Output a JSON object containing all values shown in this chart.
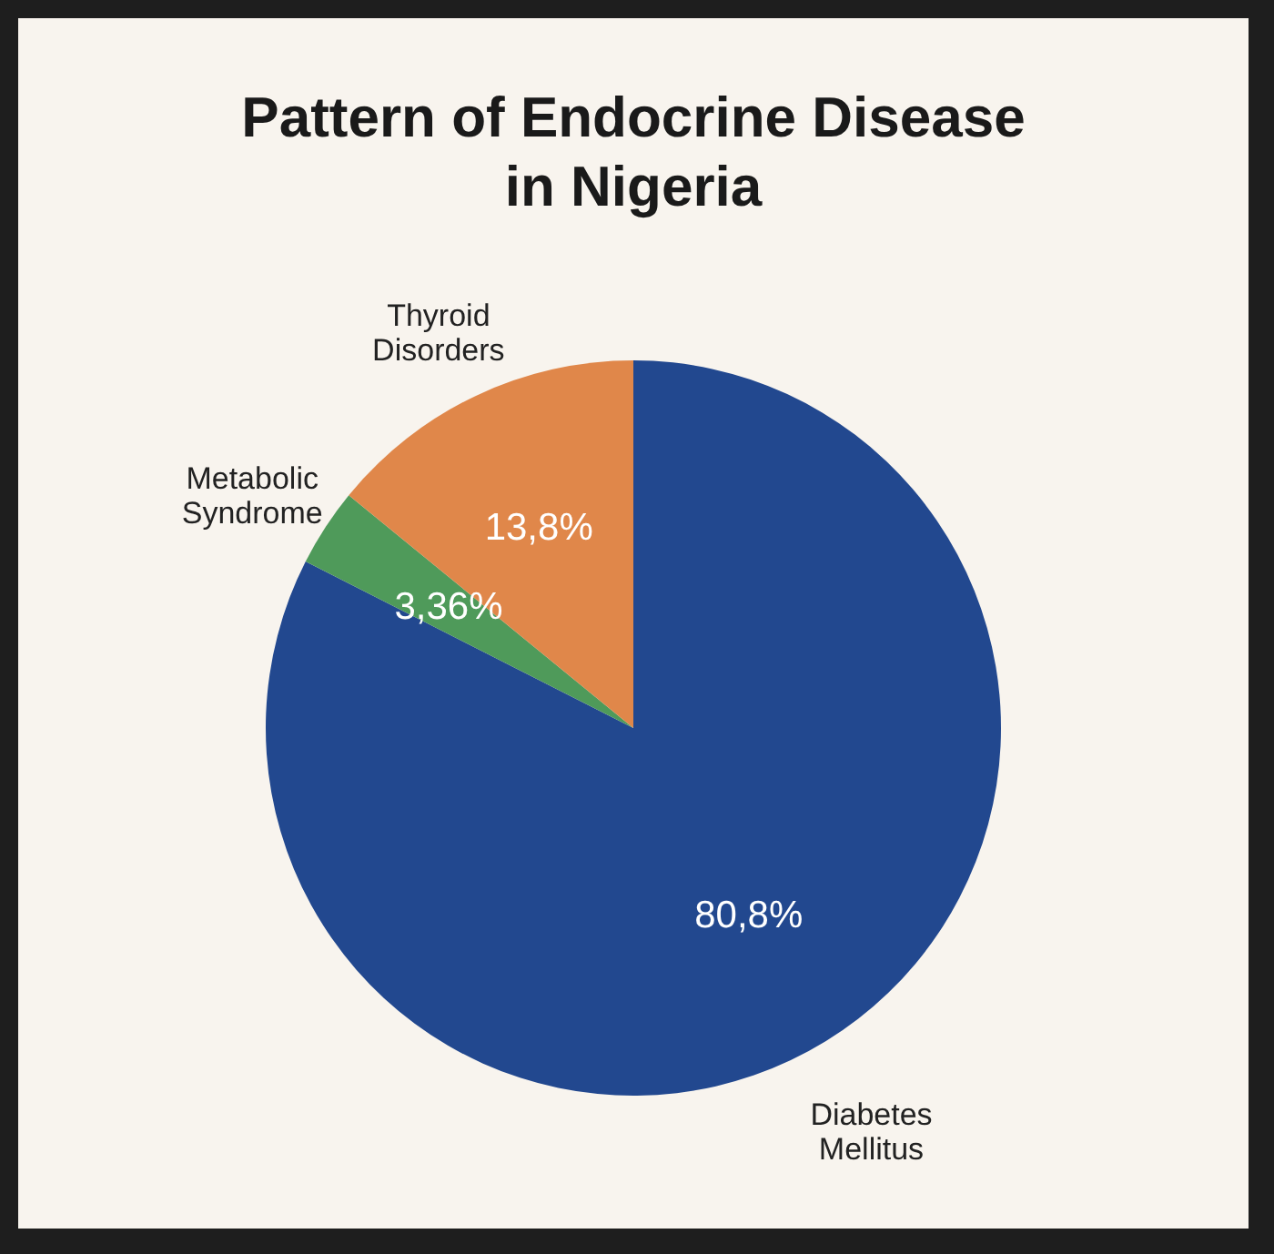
{
  "chart_data": {
    "type": "pie",
    "title": "Pattern of Endocrine Disease in Nigeria",
    "categories": [
      "Diabetes Mellitus",
      "Metabolic Syndrome",
      "Thyroid Disorders"
    ],
    "values": [
      80.8,
      3.36,
      13.8
    ],
    "colors": [
      "#22488f",
      "#4f9a5a",
      "#e0874a"
    ],
    "value_labels": [
      "80,8%",
      "3,36%",
      "13,8%"
    ]
  }
}
